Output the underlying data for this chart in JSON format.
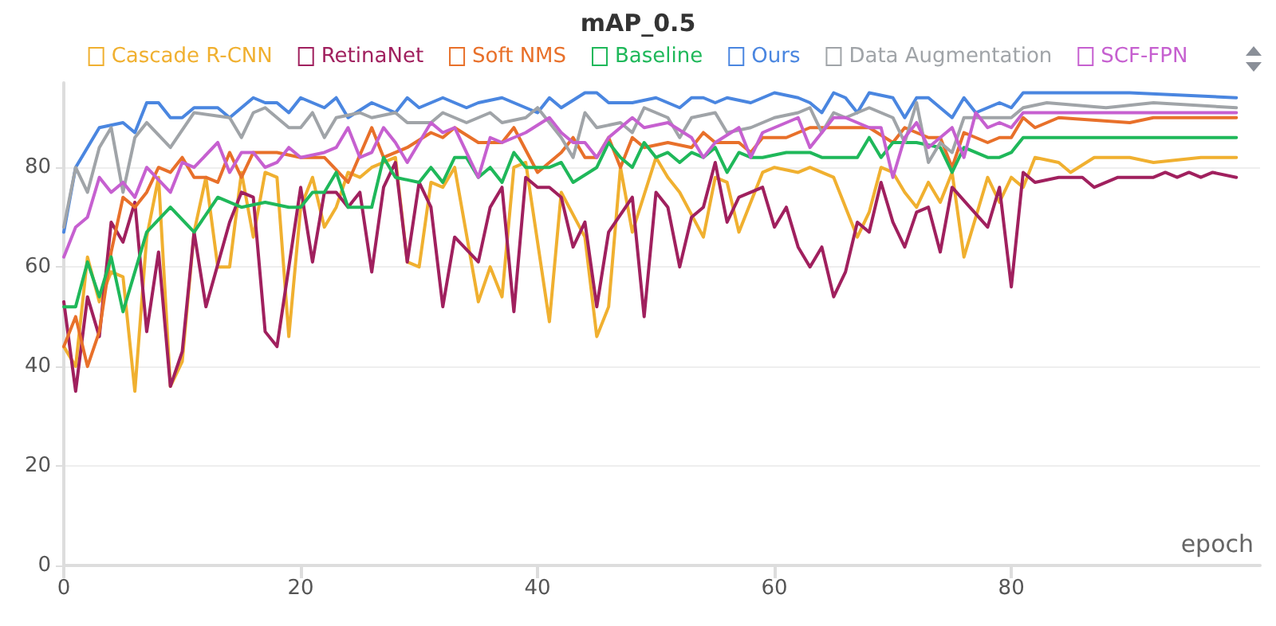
{
  "chart_data": {
    "type": "line",
    "title": "mAP_0.5",
    "xlabel": "epoch",
    "xlim": [
      0,
      101
    ],
    "xticks": [
      0,
      20,
      40,
      60,
      80
    ],
    "ylim": [
      0,
      97
    ],
    "yticks": [
      0,
      20,
      40,
      60,
      80
    ],
    "grid": "y",
    "legend": "top",
    "line_style": "solid",
    "series": [
      {
        "name": "Cascade R-CNN",
        "color": "#f0b030",
        "x": [
          0,
          1,
          2,
          3,
          4,
          5,
          6,
          7,
          8,
          9,
          10,
          11,
          12,
          13,
          14,
          15,
          16,
          17,
          18,
          19,
          20,
          21,
          22,
          23,
          24,
          25,
          26,
          28,
          29,
          30,
          31,
          32,
          33,
          35,
          36,
          37,
          38,
          39,
          41,
          42,
          44,
          45,
          46,
          47,
          48,
          50,
          51,
          52,
          54,
          55,
          56,
          57,
          59,
          60,
          62,
          63,
          65,
          66,
          67,
          68,
          69,
          70,
          71,
          72,
          73,
          74,
          75,
          76,
          78,
          79,
          80,
          81,
          82,
          84,
          85,
          87,
          90,
          92,
          96,
          99
        ],
        "values": [
          44,
          40,
          62,
          53,
          59,
          58,
          35,
          66,
          78,
          36,
          41,
          67,
          78,
          60,
          60,
          79,
          66,
          79,
          78,
          46,
          72,
          78,
          68,
          72,
          79,
          78,
          80,
          82,
          61,
          60,
          77,
          76,
          80,
          53,
          60,
          54,
          80,
          81,
          49,
          75,
          66,
          46,
          52,
          80,
          67,
          82,
          78,
          75,
          66,
          78,
          77,
          67,
          79,
          80,
          79,
          80,
          78,
          72,
          66,
          71,
          80,
          79,
          75,
          72,
          77,
          73,
          79,
          62,
          78,
          73,
          78,
          76,
          82,
          81,
          79,
          82,
          82,
          81,
          82,
          82
        ]
      },
      {
        "name": "RetinaNet",
        "color": "#a0205e",
        "x": [
          0,
          1,
          2,
          3,
          4,
          5,
          6,
          7,
          8,
          9,
          10,
          11,
          12,
          14,
          15,
          16,
          17,
          18,
          20,
          21,
          22,
          23,
          24,
          25,
          26,
          27,
          28,
          29,
          30,
          31,
          32,
          33,
          35,
          36,
          37,
          38,
          39,
          40,
          41,
          42,
          43,
          44,
          45,
          46,
          48,
          49,
          50,
          51,
          52,
          53,
          54,
          55,
          56,
          57,
          58,
          59,
          60,
          61,
          62,
          63,
          64,
          65,
          66,
          67,
          68,
          69,
          70,
          71,
          72,
          73,
          74,
          75,
          78,
          79,
          80,
          81,
          82,
          84,
          86,
          87,
          89,
          92,
          93,
          94,
          95,
          96,
          97,
          99
        ],
        "values": [
          53,
          35,
          54,
          46,
          69,
          65,
          73,
          47,
          63,
          36,
          43,
          67,
          52,
          69,
          75,
          74,
          47,
          44,
          76,
          61,
          75,
          75,
          72,
          75,
          59,
          76,
          81,
          61,
          77,
          72,
          52,
          66,
          61,
          72,
          76,
          51,
          78,
          76,
          76,
          74,
          64,
          69,
          52,
          67,
          74,
          50,
          75,
          72,
          60,
          70,
          72,
          81,
          69,
          74,
          75,
          76,
          68,
          72,
          64,
          60,
          64,
          54,
          59,
          69,
          67,
          77,
          69,
          64,
          71,
          72,
          63,
          76,
          68,
          76,
          56,
          79,
          77,
          78,
          78,
          76,
          78,
          78,
          79,
          78,
          79,
          78,
          79,
          78
        ]
      },
      {
        "name": "Soft NMS",
        "color": "#e8702a",
        "x": [
          0,
          1,
          2,
          3,
          4,
          5,
          6,
          7,
          8,
          9,
          10,
          11,
          12,
          13,
          14,
          15,
          16,
          18,
          20,
          22,
          24,
          26,
          27,
          29,
          31,
          32,
          33,
          35,
          37,
          38,
          40,
          41,
          42,
          43,
          44,
          45,
          46,
          47,
          48,
          49,
          51,
          53,
          54,
          55,
          57,
          58,
          59,
          61,
          63,
          64,
          66,
          68,
          70,
          71,
          73,
          74,
          75,
          76,
          78,
          79,
          80,
          81,
          82,
          84,
          90,
          92,
          99
        ],
        "values": [
          44,
          50,
          40,
          47,
          63,
          74,
          72,
          75,
          80,
          79,
          82,
          78,
          78,
          77,
          83,
          78,
          83,
          83,
          82,
          82,
          77,
          88,
          82,
          84,
          87,
          86,
          88,
          85,
          85,
          88,
          79,
          81,
          83,
          86,
          82,
          82,
          86,
          80,
          86,
          84,
          85,
          84,
          87,
          85,
          85,
          83,
          86,
          86,
          88,
          88,
          88,
          88,
          85,
          88,
          86,
          86,
          80,
          87,
          85,
          86,
          86,
          90,
          88,
          90,
          89,
          90,
          90
        ]
      },
      {
        "name": "Baseline",
        "color": "#1fb85a",
        "x": [
          0,
          1,
          2,
          3,
          4,
          5,
          7,
          9,
          11,
          13,
          15,
          17,
          19,
          20,
          21,
          22,
          23,
          24,
          26,
          27,
          28,
          30,
          31,
          32,
          33,
          34,
          35,
          36,
          37,
          38,
          39,
          41,
          42,
          43,
          45,
          46,
          47,
          48,
          49,
          50,
          51,
          52,
          53,
          54,
          55,
          56,
          57,
          58,
          59,
          61,
          63,
          64,
          66,
          67,
          68,
          69,
          70,
          72,
          74,
          75,
          76,
          78,
          79,
          80,
          81,
          86,
          90,
          99
        ],
        "values": [
          52,
          52,
          61,
          54,
          62,
          51,
          67,
          72,
          67,
          74,
          72,
          73,
          72,
          72,
          75,
          75,
          79,
          72,
          72,
          82,
          78,
          77,
          80,
          77,
          82,
          82,
          78,
          80,
          77,
          83,
          80,
          80,
          81,
          77,
          80,
          85,
          82,
          80,
          85,
          82,
          83,
          81,
          83,
          82,
          84,
          79,
          83,
          82,
          82,
          83,
          83,
          82,
          82,
          82,
          86,
          82,
          85,
          85,
          84,
          79,
          84,
          82,
          82,
          83,
          86,
          86,
          86,
          86
        ]
      },
      {
        "name": "Ours",
        "color": "#4a86e0",
        "x": [
          0,
          1,
          3,
          5,
          6,
          7,
          8,
          9,
          10,
          11,
          13,
          14,
          16,
          17,
          18,
          19,
          20,
          21,
          22,
          23,
          24,
          26,
          28,
          29,
          30,
          32,
          34,
          35,
          37,
          38,
          40,
          41,
          42,
          44,
          45,
          46,
          48,
          50,
          52,
          53,
          54,
          55,
          56,
          58,
          60,
          62,
          63,
          64,
          65,
          66,
          67,
          68,
          70,
          71,
          72,
          73,
          75,
          76,
          77,
          79,
          80,
          81,
          83,
          90,
          99
        ],
        "values": [
          67,
          80,
          88,
          89,
          87,
          93,
          93,
          90,
          90,
          92,
          92,
          90,
          94,
          93,
          93,
          91,
          94,
          93,
          92,
          94,
          90,
          93,
          91,
          94,
          92,
          94,
          92,
          93,
          94,
          93,
          91,
          94,
          92,
          95,
          95,
          93,
          93,
          94,
          92,
          94,
          94,
          93,
          94,
          93,
          95,
          94,
          93,
          91,
          95,
          94,
          91,
          95,
          94,
          90,
          94,
          94,
          90,
          94,
          91,
          93,
          92,
          95,
          95,
          95,
          94
        ]
      },
      {
        "name": "Data Augmentation",
        "color": "#a0a4a8",
        "x": [
          0,
          1,
          2,
          3,
          4,
          5,
          6,
          7,
          9,
          11,
          14,
          15,
          16,
          17,
          19,
          20,
          21,
          22,
          23,
          25,
          26,
          28,
          29,
          30,
          31,
          32,
          34,
          36,
          37,
          39,
          40,
          42,
          43,
          44,
          45,
          47,
          48,
          49,
          51,
          52,
          53,
          55,
          56,
          58,
          60,
          62,
          63,
          64,
          65,
          66,
          68,
          69,
          70,
          71,
          72,
          73,
          74,
          75,
          76,
          77,
          79,
          80,
          81,
          83,
          88,
          92,
          99
        ],
        "values": [
          68,
          80,
          75,
          84,
          88,
          75,
          86,
          89,
          84,
          91,
          90,
          86,
          91,
          92,
          88,
          88,
          91,
          86,
          90,
          91,
          90,
          91,
          89,
          89,
          89,
          91,
          89,
          91,
          89,
          90,
          92,
          86,
          82,
          91,
          88,
          89,
          87,
          92,
          90,
          86,
          90,
          91,
          87,
          88,
          90,
          91,
          92,
          87,
          91,
          90,
          92,
          91,
          90,
          85,
          93,
          81,
          85,
          83,
          90,
          90,
          90,
          90,
          92,
          93,
          92,
          93,
          92
        ]
      },
      {
        "name": "SCF-FPN",
        "color": "#c660d0",
        "x": [
          0,
          1,
          2,
          3,
          4,
          5,
          6,
          7,
          9,
          10,
          11,
          13,
          14,
          15,
          16,
          17,
          18,
          19,
          20,
          22,
          23,
          24,
          25,
          26,
          27,
          28,
          29,
          30,
          31,
          32,
          33,
          35,
          36,
          37,
          39,
          41,
          42,
          43,
          44,
          45,
          46,
          48,
          49,
          51,
          53,
          54,
          55,
          57,
          58,
          59,
          62,
          63,
          65,
          66,
          68,
          69,
          70,
          71,
          72,
          73,
          74,
          75,
          76,
          77,
          78,
          79,
          80,
          81,
          99
        ],
        "values": [
          62,
          68,
          70,
          78,
          75,
          77,
          74,
          80,
          75,
          81,
          80,
          85,
          79,
          83,
          83,
          80,
          81,
          84,
          82,
          83,
          84,
          88,
          82,
          83,
          88,
          85,
          81,
          85,
          89,
          87,
          88,
          78,
          86,
          85,
          87,
          90,
          87,
          85,
          85,
          82,
          86,
          90,
          88,
          89,
          86,
          82,
          85,
          88,
          82,
          87,
          90,
          84,
          90,
          90,
          88,
          88,
          78,
          86,
          89,
          84,
          86,
          88,
          82,
          91,
          88,
          89,
          88,
          91,
          91
        ]
      }
    ]
  }
}
